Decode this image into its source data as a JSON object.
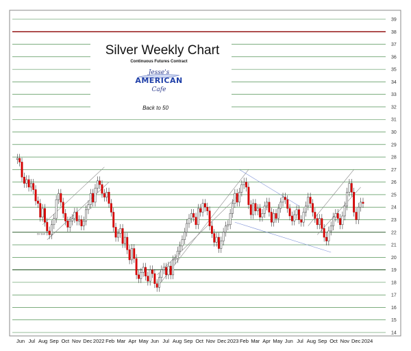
{
  "chart_data": {
    "type": "candlestick",
    "title": "Silver Weekly Chart",
    "subtitle": "Continuous Futures Contract",
    "link_text": "Back to 50",
    "logo": {
      "line1": "Jesse's",
      "line2": "AMERICAN",
      "line3": "Cafe"
    },
    "ylim": [
      14,
      39
    ],
    "yticks": [
      14,
      15,
      16,
      17,
      18,
      19,
      20,
      21,
      22,
      23,
      24,
      25,
      26,
      27,
      28,
      29,
      30,
      31,
      32,
      33,
      34,
      35,
      36,
      37,
      38,
      39
    ],
    "highlight_levels": [
      {
        "value": 38,
        "color": "#8b0000"
      },
      {
        "value": 19,
        "color": "#2f5f2f"
      },
      {
        "value": 22,
        "color": "#2f5f2f"
      }
    ],
    "xlabels": [
      "Jun",
      "Jul",
      "Aug",
      "Sep",
      "Oct",
      "Nov",
      "Dec",
      "2022",
      "Feb",
      "Mar",
      "Apr",
      "May",
      "Jun",
      "Jul",
      "Aug",
      "Sep",
      "Oct",
      "Nov",
      "Dec",
      "2023",
      "Feb",
      "Mar",
      "Apr",
      "May",
      "Jun",
      "Jul",
      "Aug",
      "Sep",
      "Oct",
      "Nov",
      "Dec",
      "2024"
    ],
    "annotations": [
      {
        "text": "Dr Evil",
        "value": 21.9
      }
    ],
    "closes": [
      27.8,
      27.9,
      27.6,
      26.4,
      25.9,
      26.2,
      25.6,
      25.9,
      25.4,
      24.5,
      24.3,
      23.2,
      23.9,
      22.8,
      22.1,
      21.8,
      22.6,
      23.1,
      24.6,
      25.1,
      24.4,
      23.5,
      22.9,
      22.4,
      22.9,
      23.1,
      23.6,
      22.9,
      23.0,
      22.5,
      22.9,
      23.8,
      24.2,
      25.1,
      24.4,
      25.5,
      26.1,
      25.8,
      25.1,
      24.8,
      25.2,
      24.3,
      23.6,
      22.4,
      21.6,
      21.9,
      22.3,
      21.1,
      21.6,
      20.6,
      19.8,
      20.7,
      19.9,
      18.6,
      18.3,
      18.8,
      19.2,
      18.5,
      18.1,
      19.0,
      18.7,
      17.9,
      17.6,
      18.4,
      19.0,
      19.2,
      18.6,
      19.3,
      18.6,
      19.8,
      19.9,
      20.5,
      20.9,
      21.4,
      22.0,
      22.7,
      23.1,
      23.5,
      23.2,
      22.6,
      23.9,
      23.6,
      24.3,
      24.0,
      23.7,
      22.5,
      21.9,
      21.2,
      21.6,
      20.7,
      21.3,
      22.0,
      22.5,
      22.6,
      23.5,
      24.3,
      25.1,
      24.4,
      25.2,
      25.8,
      26.0,
      25.6,
      24.2,
      23.4,
      24.3,
      23.7,
      23.9,
      23.2,
      23.5,
      24.1,
      24.4,
      23.6,
      22.8,
      23.5,
      23.1,
      23.9,
      24.4,
      24.8,
      24.6,
      23.9,
      23.3,
      22.9,
      23.4,
      23.8,
      23.0,
      22.8,
      23.6,
      24.1,
      24.8,
      24.3,
      23.6,
      23.1,
      22.6,
      23.1,
      22.3,
      21.6,
      21.3,
      22.1,
      22.5,
      23.2,
      23.5,
      23.1,
      22.6,
      23.3,
      24.1,
      25.2,
      25.9,
      25.2,
      23.6,
      23.0,
      24.0,
      24.4,
      24.3
    ]
  }
}
